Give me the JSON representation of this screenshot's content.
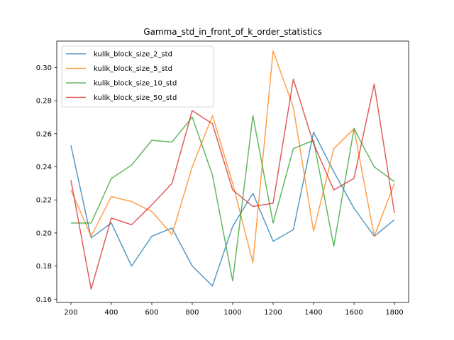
{
  "chart_data": {
    "type": "line",
    "title": "Gamma_std_in_front_of_k_order_statistics",
    "xlabel": "",
    "ylabel": "",
    "x": [
      200,
      300,
      400,
      500,
      600,
      700,
      800,
      900,
      1000,
      1100,
      1200,
      1300,
      1400,
      1500,
      1600,
      1700,
      1800
    ],
    "xlim": [
      130,
      1870
    ],
    "ylim": [
      0.158,
      0.316
    ],
    "xticks": [
      200,
      400,
      600,
      800,
      1000,
      1200,
      1400,
      1600,
      1800
    ],
    "yticks": [
      0.16,
      0.18,
      0.2,
      0.22,
      0.24,
      0.26,
      0.28,
      0.3
    ],
    "ytick_labels": [
      "0.16",
      "0.18",
      "0.20",
      "0.22",
      "0.24",
      "0.26",
      "0.28",
      "0.30"
    ],
    "grid": false,
    "legend_position": "top-left",
    "series": [
      {
        "name": "kulik_block_size_2_std",
        "color": "#1f77b4",
        "values": [
          0.253,
          0.197,
          0.206,
          0.18,
          0.198,
          0.203,
          0.18,
          0.168,
          0.204,
          0.224,
          0.195,
          0.202,
          0.261,
          0.237,
          0.215,
          0.198,
          0.208
        ]
      },
      {
        "name": "kulik_block_size_5_std",
        "color": "#ff7f0e",
        "values": [
          0.226,
          0.198,
          0.222,
          0.219,
          0.213,
          0.199,
          0.24,
          0.271,
          0.23,
          0.182,
          0.31,
          0.276,
          0.201,
          0.251,
          0.263,
          0.198,
          0.23
        ]
      },
      {
        "name": "kulik_block_size_10_std",
        "color": "#2ca02c",
        "values": [
          0.206,
          0.206,
          0.233,
          0.241,
          0.256,
          0.255,
          0.27,
          0.235,
          0.171,
          0.271,
          0.206,
          0.251,
          0.256,
          0.192,
          0.263,
          0.24,
          0.231
        ]
      },
      {
        "name": "kulik_block_size_50_std",
        "color": "#d62728",
        "values": [
          0.232,
          0.166,
          0.209,
          0.205,
          0.217,
          0.23,
          0.274,
          0.266,
          0.226,
          0.216,
          0.218,
          0.293,
          0.254,
          0.226,
          0.233,
          0.29,
          0.212
        ]
      }
    ]
  }
}
